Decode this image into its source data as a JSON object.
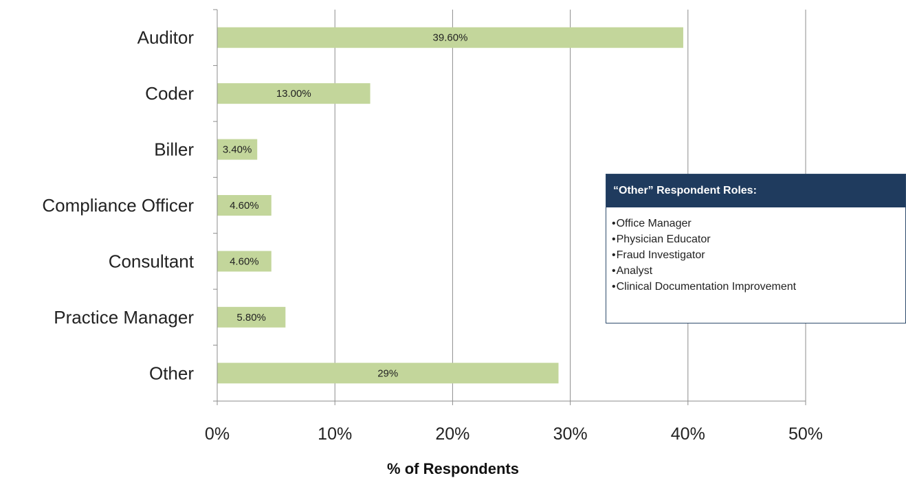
{
  "chart_data": {
    "type": "bar",
    "orientation": "horizontal",
    "categories": [
      "Auditor",
      "Coder",
      "Biller",
      "Compliance Officer",
      "Consultant",
      "Practice Manager",
      "Other"
    ],
    "values": [
      39.6,
      13.0,
      3.4,
      4.6,
      4.6,
      5.8,
      29
    ],
    "data_labels": [
      "39.60%",
      "13.00%",
      "3.40%",
      "4.60%",
      "4.60%",
      "5.80%",
      "29%"
    ],
    "xlabel": "% of Respondents",
    "xlim": [
      0,
      50
    ],
    "x_ticks": [
      "0%",
      "10%",
      "20%",
      "30%",
      "40%",
      "50%"
    ],
    "grid": "vertical",
    "bar_color": "#c3d69b"
  },
  "note_box": {
    "title": "“Other” Respondent Roles:",
    "items": [
      "Office Manager",
      "Physician Educator",
      "Fraud Investigator",
      "Analyst",
      "Clinical Documentation Improvement"
    ],
    "header_color": "#1f3b5e"
  }
}
